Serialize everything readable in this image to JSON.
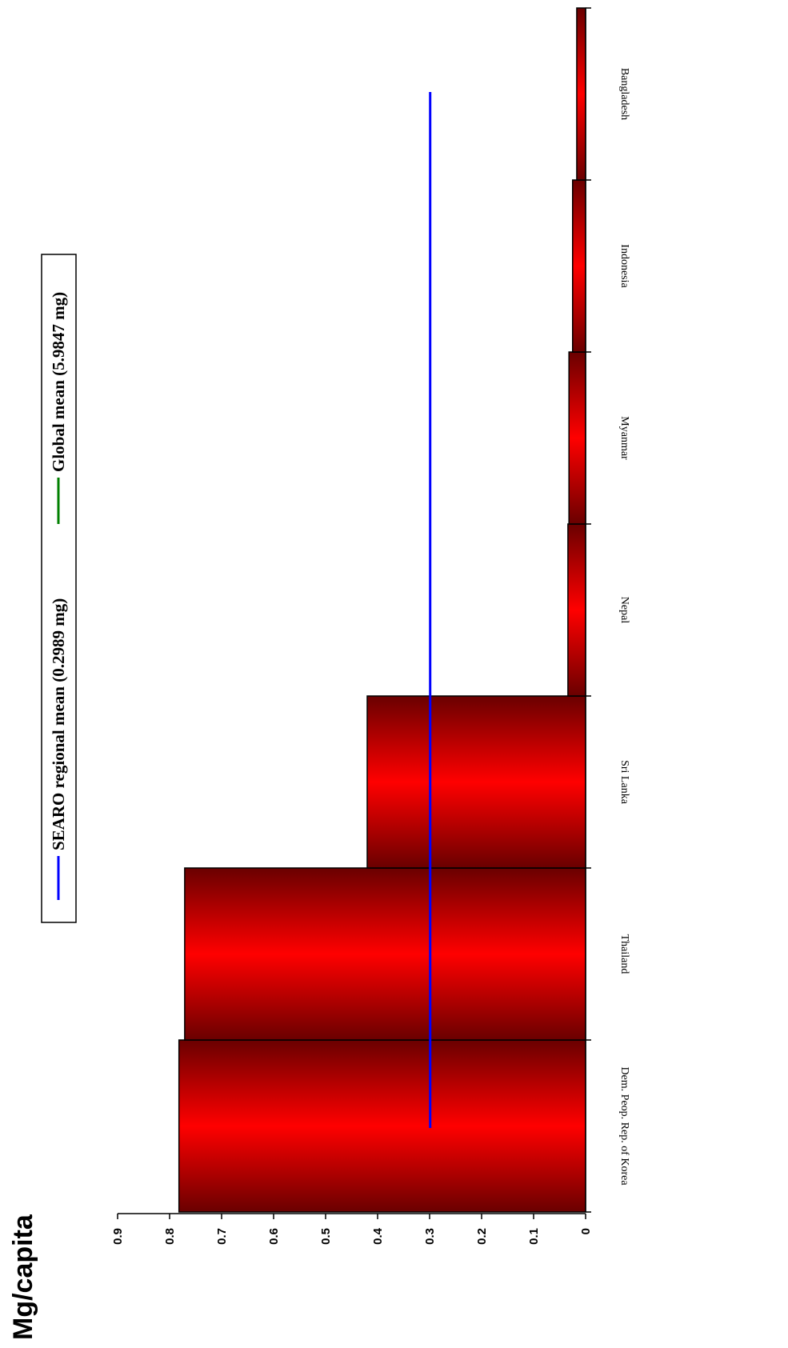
{
  "chart_data": {
    "type": "bar",
    "orientation": "rotated-90",
    "ylabel": "Mg/capita",
    "ylim": [
      0,
      0.9
    ],
    "yticks": [
      "0",
      "0.1",
      "0.2",
      "0.3",
      "0.4",
      "0.5",
      "0.6",
      "0.7",
      "0.8",
      "0.9"
    ],
    "categories": [
      "Dem. Peop. Rep. of Korea",
      "Thailand",
      "Sri Lanka",
      "Nepal",
      "Myanmar",
      "Indonesia",
      "Bangladesh"
    ],
    "values": [
      0.782,
      0.771,
      0.42,
      0.034,
      0.032,
      0.025,
      0.017
    ],
    "reference_lines": [
      {
        "label": "SEARO regional mean (0.2989 mg)",
        "value": 0.2989,
        "color": "#0000ff"
      },
      {
        "label": "Global mean (5.9847 mg)",
        "value": 5.9847,
        "color": "#008000"
      }
    ],
    "bar_colors": {
      "edge": "#6a0000",
      "center": "#ff0000"
    },
    "grid": false,
    "legend_placement": "top"
  }
}
